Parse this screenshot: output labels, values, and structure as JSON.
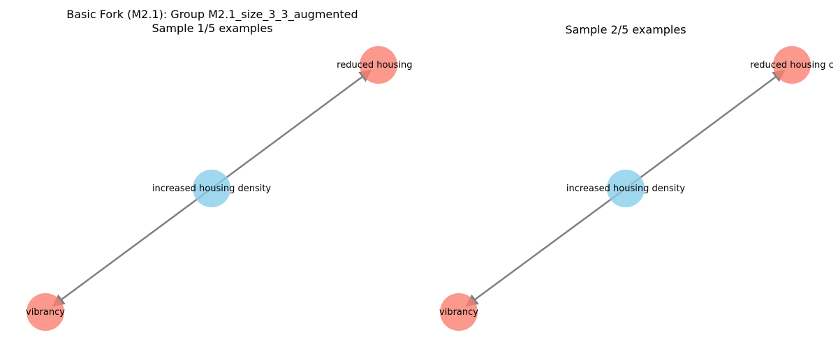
{
  "panels": [
    {
      "title_line1": "Basic Fork (M2.1): Group M2.1_size_3_3_augmented",
      "title_line2": "Sample 1/5 examples",
      "nodes": {
        "cause": "increased housing density",
        "effect_top": "reduced housing c",
        "effect_bottom": "vibrancy"
      }
    },
    {
      "title_line1": "",
      "title_line2": "Sample 2/5 examples",
      "nodes": {
        "cause": "increased housing density",
        "effect_top": "reduced housing c",
        "effect_bottom": "vibrancy"
      }
    }
  ],
  "colors": {
    "cause_node": "#87CEEB",
    "effect_node": "#FA8072",
    "edge": "#808080"
  }
}
